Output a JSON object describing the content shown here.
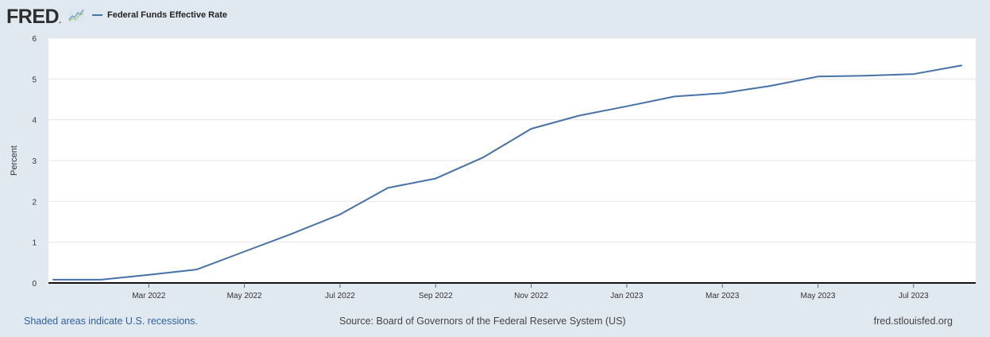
{
  "brand": {
    "logo_text": "FRED",
    "logo_dot": "."
  },
  "chart_data": {
    "type": "line",
    "title": "",
    "legend": [
      "Federal Funds Effective Rate"
    ],
    "xlabel": "",
    "ylabel": "Percent",
    "ylim": [
      0,
      6
    ],
    "yticks": [
      0,
      1,
      2,
      3,
      4,
      5,
      6
    ],
    "xtick_labels": [
      "Mar 2022",
      "May 2022",
      "Jul 2022",
      "Sep 2022",
      "Nov 2022",
      "Jan 2023",
      "Mar 2023",
      "May 2023",
      "Jul 2023"
    ],
    "xtick_indices": [
      2,
      4,
      6,
      8,
      10,
      12,
      14,
      16,
      18
    ],
    "x_domain": [
      -0.1,
      19.3
    ],
    "series": [
      {
        "name": "Federal Funds Effective Rate",
        "color": "#4572a7",
        "x": [
          "Jan 2022",
          "Feb 2022",
          "Mar 2022",
          "Apr 2022",
          "May 2022",
          "Jun 2022",
          "Jul 2022",
          "Aug 2022",
          "Sep 2022",
          "Oct 2022",
          "Nov 2022",
          "Dec 2022",
          "Jan 2023",
          "Feb 2023",
          "Mar 2023",
          "Apr 2023",
          "May 2023",
          "Jun 2023",
          "Jul 2023",
          "Aug 2023"
        ],
        "values": [
          0.08,
          0.08,
          0.2,
          0.33,
          0.77,
          1.21,
          1.68,
          2.33,
          2.56,
          3.08,
          3.78,
          4.1,
          4.33,
          4.57,
          4.65,
          4.83,
          5.06,
          5.08,
          5.12,
          5.33
        ]
      }
    ],
    "grid": true,
    "recession_shading": false
  },
  "footer": {
    "left_link": "Shaded areas indicate U.S. recessions.",
    "source": "Source: Board of Governors of the Federal Reserve System (US)",
    "site": "fred.stlouisfed.org"
  },
  "colors": {
    "background": "#e1e9f0",
    "plot_background": "#ffffff",
    "series_line": "#4572a7",
    "link": "#2d5fa3"
  }
}
